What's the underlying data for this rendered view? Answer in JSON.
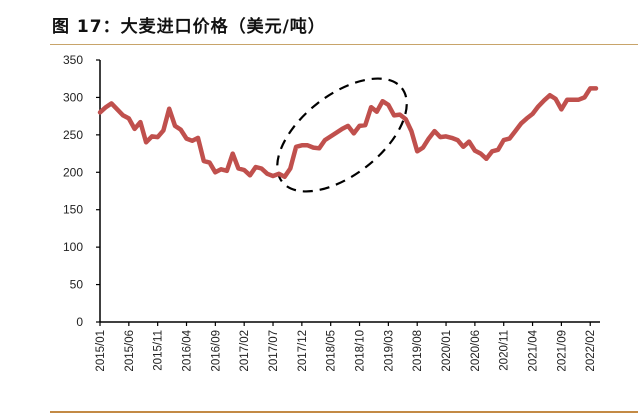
{
  "title": "图 17：大麦进口价格（美元/吨）",
  "colors": {
    "line": "#c0504d",
    "axis": "#000000",
    "rule": "#c38a45",
    "annotation": "#000000"
  },
  "chart_data": {
    "type": "line",
    "title": "图 17：大麦进口价格（美元/吨）",
    "xlabel": "",
    "ylabel": "美元/吨",
    "ylim": [
      0,
      350
    ],
    "yticks": [
      0,
      50,
      100,
      150,
      200,
      250,
      300,
      350
    ],
    "xtick_labels": [
      "2015/01",
      "2015/06",
      "2015/11",
      "2016/04",
      "2016/09",
      "2017/02",
      "2017/07",
      "2017/12",
      "2018/05",
      "2018/10",
      "2019/03",
      "2019/08",
      "2020/01",
      "2020/06",
      "2020/11",
      "2021/04",
      "2021/09",
      "2022/02"
    ],
    "grid": false,
    "legend": null,
    "annotation": "dashed ellipse highlighting 2017/07–2019/03 price rise",
    "series": [
      {
        "name": "大麦进口价格",
        "x_start": "2015/01",
        "frequency": "monthly",
        "values": [
          280,
          287,
          292,
          284,
          276,
          272,
          258,
          267,
          240,
          248,
          247,
          256,
          285,
          262,
          257,
          245,
          242,
          246,
          215,
          213,
          200,
          204,
          202,
          225,
          205,
          203,
          196,
          207,
          205,
          198,
          195,
          198,
          194,
          205,
          234,
          236,
          236,
          233,
          232,
          243,
          248,
          253,
          258,
          262,
          252,
          262,
          263,
          287,
          281,
          295,
          290,
          276,
          277,
          271,
          255,
          228,
          233,
          245,
          255,
          247,
          248,
          246,
          243,
          234,
          241,
          229,
          225,
          218,
          228,
          230,
          243,
          245,
          255,
          265,
          272,
          278,
          288,
          296,
          303,
          298,
          284,
          297,
          297,
          297,
          300,
          312,
          312
        ]
      }
    ]
  }
}
